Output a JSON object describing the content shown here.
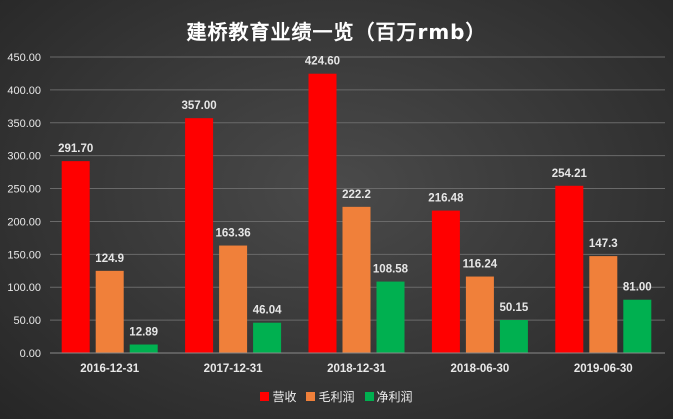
{
  "chart_data": {
    "type": "bar",
    "title": "建桥教育业绩一览（百万rmb）",
    "categories": [
      "2016-12-31",
      "2017-12-31",
      "2018-12-31",
      "2018-06-30",
      "2019-06-30"
    ],
    "series": [
      {
        "name": "营收",
        "color": "#ff0000",
        "values": [
          291.7,
          357.0,
          424.6,
          216.48,
          254.21
        ],
        "labels": [
          "291.70",
          "357.00",
          "424.60",
          "216.48",
          "254.21"
        ]
      },
      {
        "name": "毛利润",
        "color": "#f0803a",
        "values": [
          124.9,
          163.36,
          222.2,
          116.24,
          147.3
        ],
        "labels": [
          "124.9",
          "163.36",
          "222.2",
          "116.24",
          "147.3"
        ]
      },
      {
        "name": "净利润",
        "color": "#00b050",
        "values": [
          12.89,
          46.04,
          108.58,
          50.15,
          81.0
        ],
        "labels": [
          "12.89",
          "46.04",
          "108.58",
          "50.15",
          "81.00"
        ]
      }
    ],
    "ylim": [
      0,
      450
    ],
    "yticks": [
      "0.00",
      "50.00",
      "100.00",
      "150.00",
      "200.00",
      "250.00",
      "300.00",
      "350.00",
      "400.00",
      "450.00"
    ],
    "grid": true,
    "legend_position": "bottom"
  }
}
